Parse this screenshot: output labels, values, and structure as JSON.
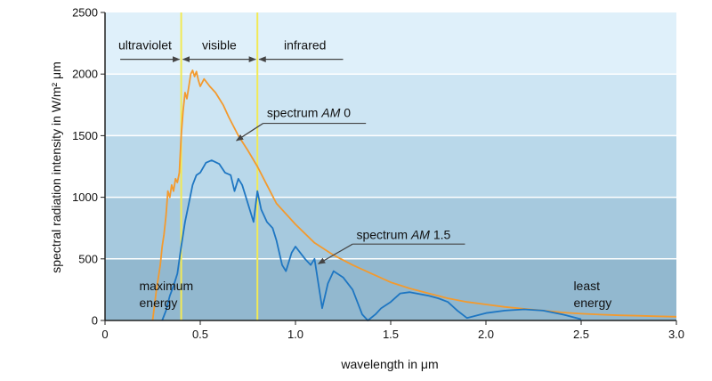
{
  "chart_data": {
    "type": "line",
    "xlabel": "wavelength in μm",
    "ylabel": "spectral radiation intensity in W/m² μm",
    "xlim": [
      0,
      3.0
    ],
    "ylim": [
      0,
      2500
    ],
    "x_ticks": [
      {
        "value": 0,
        "label": "0"
      },
      {
        "value": 0.5,
        "label": "0.5"
      },
      {
        "value": 1.0,
        "label": "1.0"
      },
      {
        "value": 1.5,
        "label": "1.5"
      },
      {
        "value": 2.0,
        "label": "2.0"
      },
      {
        "value": 2.5,
        "label": "2.5"
      },
      {
        "value": 3.0,
        "label": "3.0"
      }
    ],
    "y_ticks": [
      {
        "value": 0,
        "label": "0"
      },
      {
        "value": 500,
        "label": "500"
      },
      {
        "value": 1000,
        "label": "1000"
      },
      {
        "value": 1500,
        "label": "1500"
      },
      {
        "value": 2000,
        "label": "2000"
      },
      {
        "value": 2500,
        "label": "2500"
      }
    ],
    "background_bands": [
      {
        "from": 0,
        "to": 500,
        "color": "#92b8cf"
      },
      {
        "from": 500,
        "to": 1000,
        "color": "#a6c9de"
      },
      {
        "from": 1000,
        "to": 1500,
        "color": "#b9d8ea"
      },
      {
        "from": 1500,
        "to": 2000,
        "color": "#cde5f3"
      },
      {
        "from": 2000,
        "to": 2500,
        "color": "#dff0fa"
      }
    ],
    "grid_color": "#ffffff",
    "region_lines": [
      {
        "x": 0.4,
        "color": "#f2ea55"
      },
      {
        "x": 0.8,
        "color": "#f2ea55"
      }
    ],
    "regions": [
      {
        "label": "ultraviolet",
        "from": 0.08,
        "to": 0.4,
        "label_x": 0.21
      },
      {
        "label": "visible",
        "from": 0.4,
        "to": 0.8,
        "label_x": 0.6
      },
      {
        "label": "infrared",
        "from": 0.8,
        "to": 1.25,
        "label_x": 1.05
      }
    ],
    "region_label_y": 2200,
    "region_arrow_y": 2120,
    "series": [
      {
        "id": "am0",
        "color": "#f39a2e",
        "points": [
          [
            0.25,
            0
          ],
          [
            0.27,
            250
          ],
          [
            0.29,
            450
          ],
          [
            0.3,
            600
          ],
          [
            0.31,
            700
          ],
          [
            0.32,
            850
          ],
          [
            0.33,
            1050
          ],
          [
            0.34,
            1000
          ],
          [
            0.35,
            1100
          ],
          [
            0.36,
            1050
          ],
          [
            0.37,
            1150
          ],
          [
            0.38,
            1120
          ],
          [
            0.39,
            1200
          ],
          [
            0.4,
            1500
          ],
          [
            0.41,
            1700
          ],
          [
            0.42,
            1850
          ],
          [
            0.43,
            1800
          ],
          [
            0.44,
            1900
          ],
          [
            0.45,
            2000
          ],
          [
            0.46,
            2030
          ],
          [
            0.47,
            1980
          ],
          [
            0.48,
            2020
          ],
          [
            0.49,
            1950
          ],
          [
            0.5,
            1900
          ],
          [
            0.52,
            1960
          ],
          [
            0.55,
            1900
          ],
          [
            0.58,
            1850
          ],
          [
            0.6,
            1800
          ],
          [
            0.62,
            1750
          ],
          [
            0.65,
            1650
          ],
          [
            0.7,
            1500
          ],
          [
            0.75,
            1380
          ],
          [
            0.8,
            1250
          ],
          [
            0.85,
            1100
          ],
          [
            0.9,
            950
          ],
          [
            1.0,
            780
          ],
          [
            1.1,
            630
          ],
          [
            1.2,
            530
          ],
          [
            1.3,
            450
          ],
          [
            1.4,
            380
          ],
          [
            1.5,
            310
          ],
          [
            1.6,
            260
          ],
          [
            1.7,
            220
          ],
          [
            1.8,
            180
          ],
          [
            1.9,
            150
          ],
          [
            2.0,
            130
          ],
          [
            2.1,
            110
          ],
          [
            2.2,
            95
          ],
          [
            2.3,
            80
          ],
          [
            2.4,
            65
          ],
          [
            2.5,
            55
          ],
          [
            2.6,
            48
          ],
          [
            2.7,
            42
          ],
          [
            2.8,
            38
          ],
          [
            2.9,
            34
          ],
          [
            3.0,
            30
          ]
        ]
      },
      {
        "id": "am15",
        "color": "#1e76c2",
        "points": [
          [
            0.3,
            0
          ],
          [
            0.32,
            80
          ],
          [
            0.34,
            200
          ],
          [
            0.36,
            280
          ],
          [
            0.38,
            380
          ],
          [
            0.4,
            600
          ],
          [
            0.42,
            800
          ],
          [
            0.44,
            950
          ],
          [
            0.46,
            1100
          ],
          [
            0.48,
            1180
          ],
          [
            0.5,
            1200
          ],
          [
            0.53,
            1280
          ],
          [
            0.56,
            1300
          ],
          [
            0.6,
            1270
          ],
          [
            0.63,
            1200
          ],
          [
            0.66,
            1180
          ],
          [
            0.68,
            1050
          ],
          [
            0.7,
            1150
          ],
          [
            0.72,
            1100
          ],
          [
            0.74,
            1000
          ],
          [
            0.76,
            900
          ],
          [
            0.78,
            800
          ],
          [
            0.8,
            1050
          ],
          [
            0.82,
            900
          ],
          [
            0.85,
            800
          ],
          [
            0.88,
            750
          ],
          [
            0.9,
            650
          ],
          [
            0.93,
            450
          ],
          [
            0.95,
            400
          ],
          [
            0.98,
            550
          ],
          [
            1.0,
            600
          ],
          [
            1.05,
            500
          ],
          [
            1.08,
            450
          ],
          [
            1.1,
            500
          ],
          [
            1.12,
            300
          ],
          [
            1.14,
            100
          ],
          [
            1.17,
            300
          ],
          [
            1.2,
            400
          ],
          [
            1.25,
            350
          ],
          [
            1.3,
            250
          ],
          [
            1.35,
            50
          ],
          [
            1.38,
            0
          ],
          [
            1.42,
            50
          ],
          [
            1.45,
            100
          ],
          [
            1.5,
            150
          ],
          [
            1.55,
            220
          ],
          [
            1.6,
            230
          ],
          [
            1.7,
            200
          ],
          [
            1.75,
            180
          ],
          [
            1.8,
            150
          ],
          [
            1.85,
            80
          ],
          [
            1.9,
            20
          ],
          [
            1.95,
            40
          ],
          [
            2.0,
            60
          ],
          [
            2.1,
            80
          ],
          [
            2.2,
            90
          ],
          [
            2.3,
            80
          ],
          [
            2.4,
            50
          ],
          [
            2.5,
            10
          ]
        ]
      }
    ],
    "annotations": [
      {
        "label": "spectrum ",
        "label_em": "AM",
        "label_tail": " 0",
        "text_x": 0.85,
        "text_y": 1650,
        "line": [
          [
            0.83,
            1600
          ],
          [
            1.37,
            1600
          ]
        ],
        "arrow_from": [
          0.83,
          1600
        ],
        "arrow_to": [
          0.69,
          1460
        ]
      },
      {
        "label": "spectrum ",
        "label_em": "AM",
        "label_tail": " 1.5",
        "text_x": 1.32,
        "text_y": 660,
        "line": [
          [
            1.3,
            620
          ],
          [
            1.89,
            620
          ]
        ],
        "arrow_from": [
          1.3,
          620
        ],
        "arrow_to": [
          1.12,
          460
        ]
      }
    ],
    "side_notes": [
      {
        "lines": [
          "maximum",
          "energy"
        ],
        "x": 0.18,
        "y1": 245,
        "y2": 110
      },
      {
        "lines": [
          "least",
          "energy"
        ],
        "x": 2.46,
        "y1": 245,
        "y2": 110
      }
    ]
  }
}
